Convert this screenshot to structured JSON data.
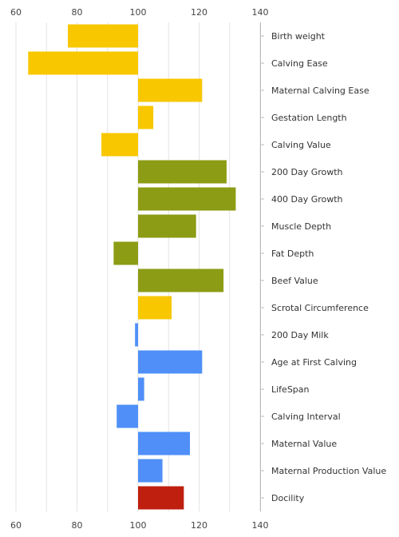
{
  "chart_data": {
    "type": "bar",
    "orientation": "horizontal",
    "baseline": 100,
    "xlim": [
      60,
      140
    ],
    "xticks": [
      60,
      80,
      100,
      120,
      140
    ],
    "xtick_labels": [
      "60",
      "80",
      "100",
      "120",
      "140"
    ],
    "grid": true,
    "categories": [
      "Birth weight",
      "Calving Ease",
      "Maternal Calving Ease",
      "Gestation Length",
      "Calving Value",
      "200 Day Growth",
      "400 Day Growth",
      "Muscle Depth",
      "Fat Depth",
      "Beef Value",
      "Scrotal Circumference",
      "200 Day Milk",
      "Age at First Calving",
      "LifeSpan",
      "Calving Interval",
      "Maternal Value",
      "Maternal Production Value",
      "Docility"
    ],
    "values": [
      77,
      64,
      121,
      105,
      88,
      129,
      132,
      119,
      92,
      128,
      111,
      99,
      121,
      102,
      93,
      117,
      108,
      115
    ],
    "bar_colors": [
      "#f8c700",
      "#f8c700",
      "#f8c700",
      "#f8c700",
      "#f8c700",
      "#8c9c14",
      "#8c9c14",
      "#8c9c14",
      "#8c9c14",
      "#8c9c14",
      "#f8c700",
      "#4f8ff7",
      "#4f8ff7",
      "#4f8ff7",
      "#4f8ff7",
      "#4f8ff7",
      "#4f8ff7",
      "#bf1f0f"
    ],
    "title": "",
    "xlabel": "",
    "ylabel": ""
  }
}
